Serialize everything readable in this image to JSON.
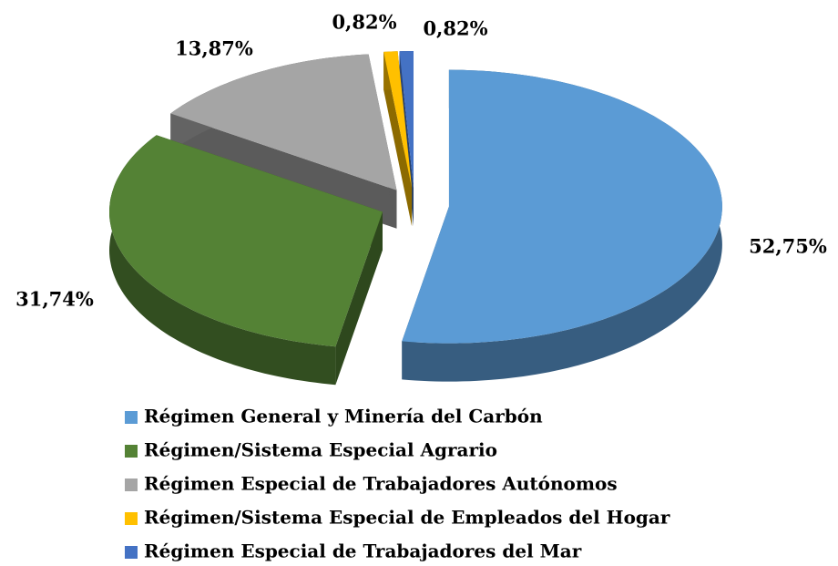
{
  "chart_data": {
    "type": "pie",
    "categories": [
      "Régimen General y Minería del Carbón",
      "Régimen/Sistema Especial Agrario",
      "Régimen Especial de Trabajadores Autónomos",
      "Régimen/Sistema Especial de Empleados del Hogar",
      "Régimen Especial de Trabajadores del Mar"
    ],
    "values": [
      52.75,
      31.74,
      13.87,
      0.82,
      0.82
    ],
    "value_labels": [
      "52,75%",
      "31,74%",
      "13,87%",
      "0,82%",
      "0,82%"
    ],
    "colors": [
      "#5b9bd5",
      "#548235",
      "#a5a5a5",
      "#ffc000",
      "#4472c4"
    ],
    "legend": "bottom"
  }
}
